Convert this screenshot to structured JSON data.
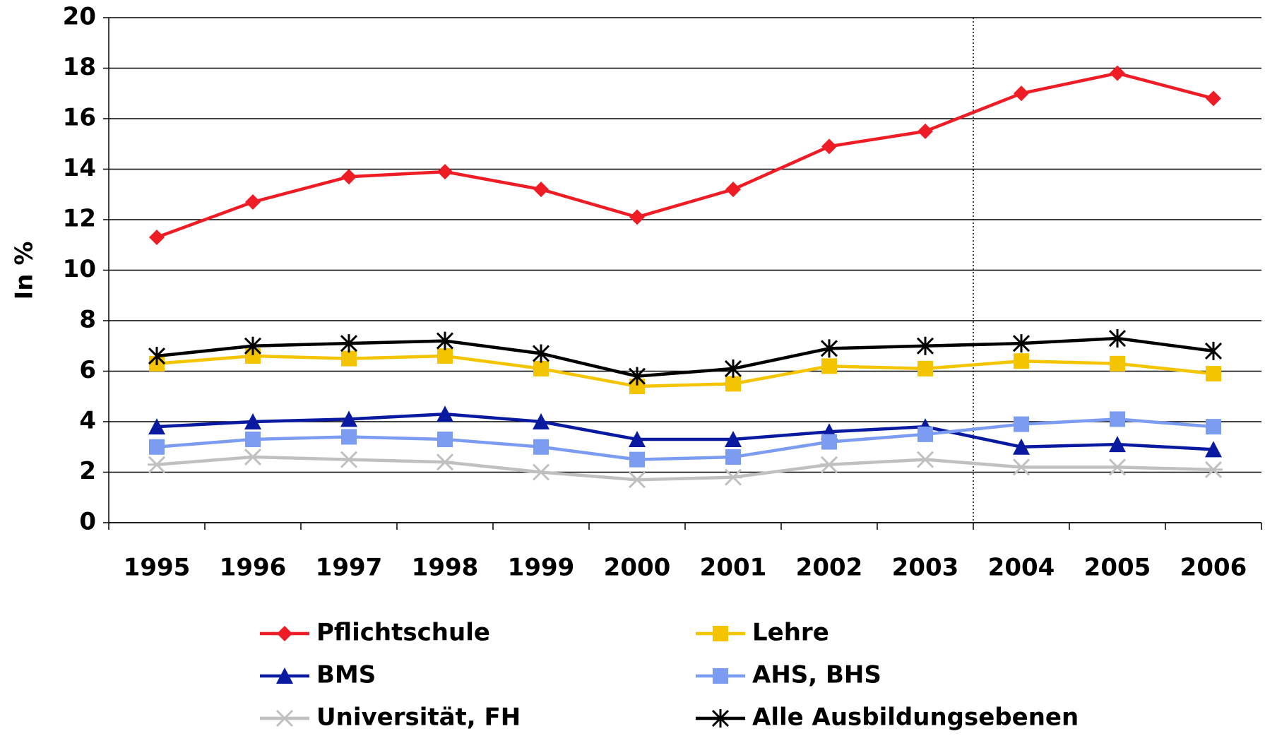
{
  "chart_data": {
    "type": "line",
    "y_label": "In %",
    "categories": [
      "1995",
      "1996",
      "1997",
      "1998",
      "1999",
      "2000",
      "2001",
      "2002",
      "2003",
      "2004",
      "2005",
      "2006"
    ],
    "series": [
      {
        "name": "Pflichtschule",
        "color": "#ee1c25",
        "marker": "diamond",
        "values": [
          11.3,
          12.7,
          13.7,
          13.9,
          13.2,
          12.1,
          13.2,
          14.9,
          15.5,
          17.0,
          17.8,
          16.8
        ]
      },
      {
        "name": "Lehre",
        "color": "#f5c400",
        "marker": "square",
        "values": [
          6.3,
          6.6,
          6.5,
          6.6,
          6.1,
          5.4,
          5.5,
          6.2,
          6.1,
          6.4,
          6.3,
          5.9
        ]
      },
      {
        "name": "BMS",
        "color": "#0a1aa0",
        "marker": "triangle",
        "values": [
          3.8,
          4.0,
          4.1,
          4.3,
          4.0,
          3.3,
          3.3,
          3.6,
          3.8,
          3.0,
          3.1,
          2.9
        ]
      },
      {
        "name": "AHS, BHS",
        "color": "#7b9cf0",
        "marker": "square",
        "values": [
          3.0,
          3.3,
          3.4,
          3.3,
          3.0,
          2.5,
          2.6,
          3.2,
          3.5,
          3.9,
          4.1,
          3.8
        ]
      },
      {
        "name": "Universität, FH",
        "color": "#c0c0c0",
        "marker": "asterisk",
        "values": [
          2.3,
          2.6,
          2.5,
          2.4,
          2.0,
          1.7,
          1.8,
          2.3,
          2.5,
          2.2,
          2.2,
          2.1
        ]
      },
      {
        "name": "Alle Ausbildungsebenen",
        "color": "#000000",
        "marker": "star",
        "values": [
          6.6,
          7.0,
          7.1,
          7.2,
          6.7,
          5.8,
          6.1,
          6.9,
          7.0,
          7.1,
          7.3,
          6.8
        ]
      }
    ],
    "ylim": [
      0,
      20
    ],
    "yticks": [
      0,
      2,
      4,
      6,
      8,
      10,
      12,
      14,
      16,
      18,
      20
    ],
    "grid": true
  }
}
